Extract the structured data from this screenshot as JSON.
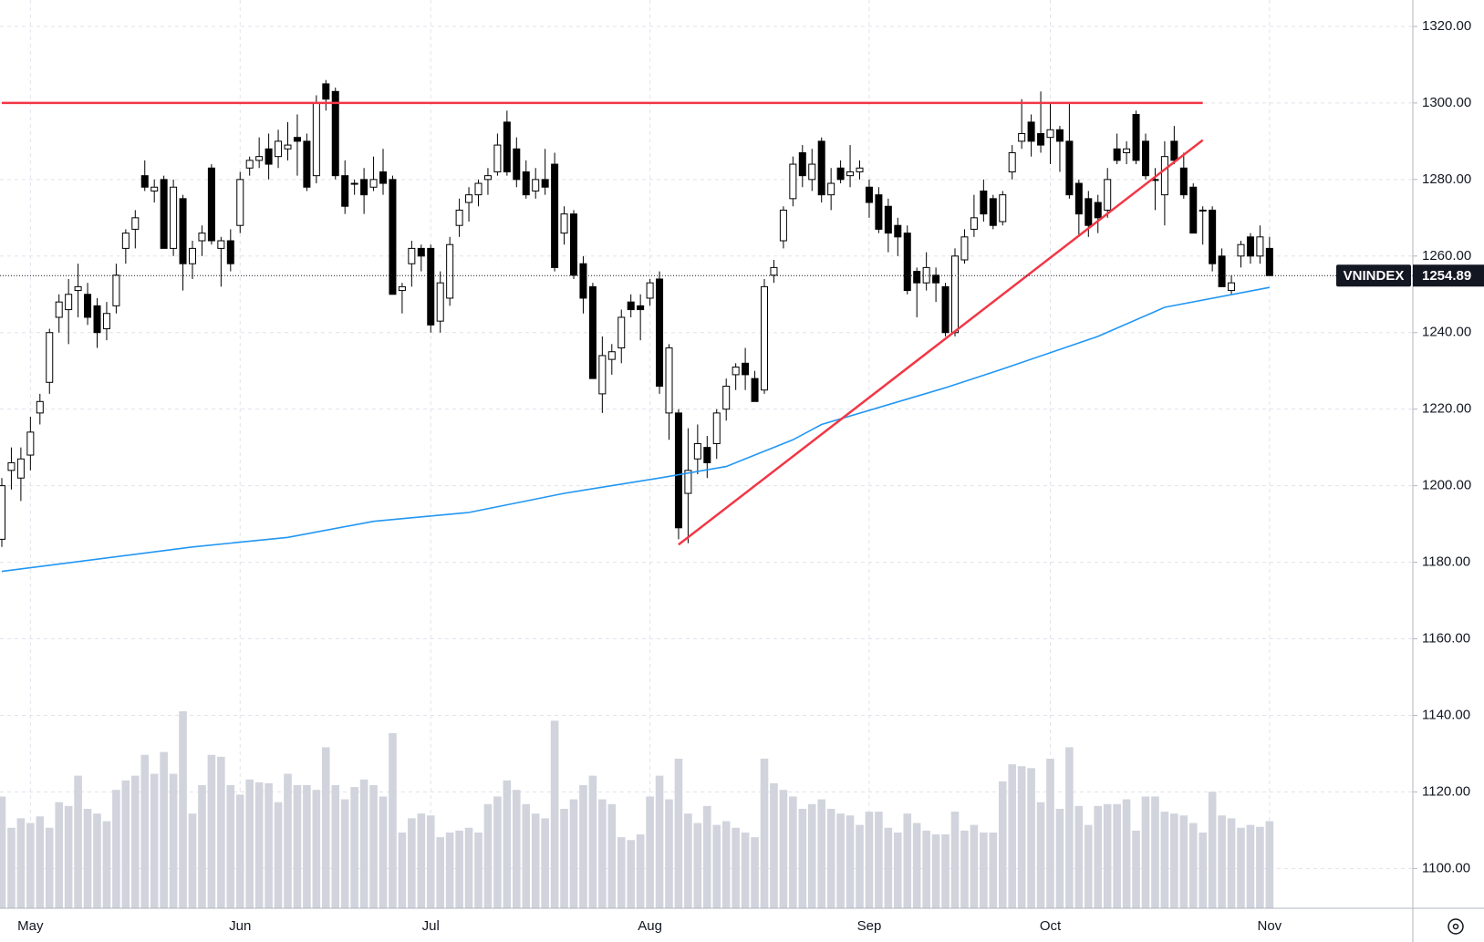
{
  "chart_data": {
    "type": "candlestick",
    "name": "VNINDEX",
    "categories": [
      null,
      null,
      null,
      "May",
      null,
      null,
      null,
      null,
      null,
      null,
      null,
      null,
      null,
      null,
      null,
      null,
      null,
      null,
      null,
      null,
      null,
      null,
      null,
      null,
      null,
      "Jun",
      null,
      null,
      null,
      null,
      null,
      null,
      null,
      null,
      null,
      null,
      null,
      null,
      null,
      null,
      null,
      null,
      null,
      null,
      null,
      "Jul",
      null,
      null,
      null,
      null,
      null,
      null,
      null,
      null,
      null,
      null,
      null,
      null,
      null,
      null,
      null,
      null,
      null,
      null,
      null,
      null,
      null,
      null,
      "Aug",
      null,
      null,
      null,
      null,
      null,
      null,
      null,
      null,
      null,
      null,
      null,
      null,
      null,
      null,
      null,
      null,
      null,
      null,
      null,
      null,
      null,
      null,
      "Sep",
      null,
      null,
      null,
      null,
      null,
      null,
      null,
      null,
      null,
      null,
      null,
      null,
      null,
      null,
      null,
      null,
      null,
      null,
      "Oct",
      null,
      null,
      null,
      null,
      null,
      null,
      null,
      null,
      null,
      null,
      null,
      null,
      null,
      null,
      null,
      null,
      null,
      null,
      null,
      null,
      null,
      null,
      "Nov"
    ],
    "open": [
      1186,
      1204,
      1202,
      1208,
      1219,
      1227,
      1244,
      1246,
      1251,
      1250,
      1247,
      1241,
      1247,
      1262,
      1267,
      1281,
      1277,
      1280,
      1262,
      1275,
      1258,
      1264,
      1283,
      1262,
      1264,
      1268,
      1283,
      1285,
      1288,
      1286,
      1288,
      1291,
      1290,
      1281,
      1305,
      1303,
      1281,
      1279,
      1280,
      1278,
      1282,
      1280,
      1251,
      1258,
      1262,
      1262,
      1243,
      1249,
      1268,
      1274,
      1276,
      1280,
      1282,
      1295,
      1288,
      1282,
      1277,
      1280,
      1284,
      1266,
      1271,
      1258,
      1252,
      1224,
      1233,
      1236,
      1248,
      1247,
      1249,
      1254,
      1219,
      1219,
      1198,
      1207,
      1210,
      1211,
      1220,
      1229,
      1232,
      1228,
      1225,
      1255,
      1264,
      1275,
      1287,
      1280,
      1290,
      1276,
      1283,
      1281,
      1282,
      1278,
      1276,
      1273,
      1268,
      1266,
      1256,
      1253,
      1255,
      1252,
      1240,
      1259,
      1267,
      1277,
      1275,
      1269,
      1282,
      1290,
      1295,
      1292,
      1291,
      1293,
      1290,
      1279,
      1275,
      1274,
      1272,
      1288,
      1287,
      1297,
      1290,
      1280,
      1276,
      1290,
      1283,
      1278,
      1272,
      1272,
      1260,
      1251,
      1260,
      1265,
      1260,
      1262
    ],
    "high": [
      1202,
      1210,
      1210,
      1218,
      1224,
      1241,
      1250,
      1254,
      1258,
      1253,
      1249,
      1248,
      1258,
      1267,
      1272,
      1285,
      1280,
      1281,
      1280,
      1276,
      1264,
      1268,
      1284,
      1265,
      1267,
      1282,
      1286,
      1291,
      1292,
      1293,
      1295,
      1297,
      1292,
      1302,
      1306,
      1304,
      1285,
      1280,
      1283,
      1286,
      1288,
      1281,
      1253,
      1264,
      1263,
      1263,
      1256,
      1265,
      1275,
      1278,
      1280,
      1283,
      1292,
      1298,
      1291,
      1285,
      1283,
      1288,
      1287,
      1273,
      1272,
      1260,
      1253,
      1239,
      1237,
      1246,
      1250,
      1250,
      1254,
      1256,
      1237,
      1220,
      1215,
      1216,
      1213,
      1220,
      1228,
      1232,
      1236,
      1230,
      1254,
      1259,
      1273,
      1286,
      1289,
      1288,
      1291,
      1283,
      1285,
      1289,
      1285,
      1280,
      1278,
      1275,
      1270,
      1268,
      1257,
      1261,
      1257,
      1253,
      1262,
      1267,
      1276,
      1280,
      1276,
      1277,
      1289,
      1301,
      1297,
      1303,
      1300,
      1294,
      1300,
      1280,
      1277,
      1276,
      1283,
      1292,
      1290,
      1298,
      1292,
      1283,
      1290,
      1294,
      1287,
      1279,
      1273,
      1273,
      1262,
      1255,
      1264,
      1266,
      1268,
      1265
    ],
    "low": [
      1184,
      1199,
      1196,
      1204,
      1216,
      1224,
      1240,
      1237,
      1244,
      1242,
      1236,
      1238,
      1245,
      1258,
      1262,
      1277,
      1274,
      1262,
      1260,
      1251,
      1254,
      1260,
      1263,
      1252,
      1256,
      1266,
      1281,
      1283,
      1280,
      1283,
      1285,
      1281,
      1277,
      1279,
      1298,
      1280,
      1271,
      1276,
      1271,
      1277,
      1276,
      1250,
      1245,
      1252,
      1256,
      1240,
      1240,
      1247,
      1265,
      1269,
      1273,
      1276,
      1281,
      1281,
      1278,
      1275,
      1275,
      1276,
      1256,
      1263,
      1254,
      1245,
      1228,
      1219,
      1229,
      1232,
      1244,
      1238,
      1247,
      1224,
      1212,
      1186,
      1185,
      1203,
      1202,
      1207,
      1217,
      1225,
      1225,
      1222,
      1224,
      1253,
      1262,
      1273,
      1278,
      1277,
      1274,
      1272,
      1279,
      1278,
      1280,
      1270,
      1266,
      1261,
      1260,
      1250,
      1244,
      1251,
      1248,
      1239,
      1239,
      1258,
      1265,
      1269,
      1267,
      1268,
      1280,
      1288,
      1286,
      1287,
      1284,
      1282,
      1275,
      1265,
      1265,
      1266,
      1270,
      1284,
      1284,
      1284,
      1280,
      1272,
      1268,
      1284,
      1275,
      1266,
      1263,
      1256,
      1252,
      1250,
      1257,
      1258,
      1258,
      1254.89
    ],
    "close": [
      1200,
      1206,
      1207,
      1214,
      1222,
      1240,
      1248,
      1250,
      1252,
      1244,
      1240,
      1245,
      1255,
      1266,
      1270,
      1278,
      1278,
      1262,
      1278,
      1258,
      1262,
      1266,
      1264,
      1264,
      1258,
      1280,
      1285,
      1286,
      1284,
      1290,
      1289,
      1290,
      1278,
      1300,
      1301,
      1281,
      1273,
      1279,
      1276,
      1280,
      1279,
      1250,
      1252,
      1262,
      1260,
      1242,
      1253,
      1263,
      1272,
      1276,
      1279,
      1281,
      1289,
      1282,
      1280,
      1276,
      1280,
      1278,
      1257,
      1271,
      1255,
      1249,
      1228,
      1234,
      1235,
      1244,
      1246,
      1246,
      1253,
      1226,
      1236,
      1189,
      1204,
      1211,
      1206,
      1219,
      1226,
      1231,
      1229,
      1222,
      1252,
      1257,
      1272,
      1284,
      1281,
      1284,
      1276,
      1279,
      1280,
      1282,
      1283,
      1274,
      1267,
      1266,
      1265,
      1251,
      1253,
      1257,
      1253,
      1240,
      1260,
      1265,
      1270,
      1271,
      1268,
      1276,
      1287,
      1292,
      1290,
      1289,
      1293,
      1290,
      1276,
      1271,
      1268,
      1270,
      1280,
      1285,
      1288,
      1285,
      1281,
      1280,
      1286,
      1285,
      1276,
      1266,
      1272,
      1258,
      1252,
      1253,
      1263,
      1260,
      1265,
      1254.89
    ],
    "volume": [
      118,
      85,
      95,
      90,
      97,
      85,
      112,
      108,
      140,
      105,
      100,
      92,
      125,
      135,
      140,
      162,
      142,
      165,
      142,
      208,
      100,
      130,
      162,
      160,
      130,
      120,
      136,
      133,
      132,
      112,
      142,
      130,
      130,
      125,
      170,
      130,
      115,
      128,
      136,
      130,
      118,
      185,
      80,
      95,
      100,
      98,
      75,
      80,
      82,
      85,
      80,
      110,
      118,
      135,
      125,
      110,
      100,
      95,
      198,
      105,
      115,
      130,
      140,
      115,
      110,
      75,
      72,
      78,
      118,
      140,
      115,
      158,
      100,
      90,
      108,
      88,
      92,
      85,
      80,
      75,
      158,
      132,
      125,
      118,
      105,
      110,
      115,
      105,
      100,
      98,
      88,
      102,
      102,
      85,
      80,
      100,
      90,
      82,
      78,
      78,
      102,
      82,
      88,
      80,
      80,
      134,
      152,
      150,
      148,
      112,
      158,
      105,
      170,
      108,
      88,
      108,
      110,
      110,
      115,
      82,
      118,
      118,
      102,
      100,
      98,
      90,
      80,
      123,
      98,
      95,
      85,
      88,
      86,
      92
    ],
    "volume_color": "#d1d4dc",
    "up_color": "#ffffff",
    "down_color": "#000000",
    "ylim": [
      1089.6,
      1326.9
    ],
    "yticks": [
      {
        "value": 1100,
        "label": "1100.00"
      },
      {
        "value": 1120,
        "label": "1120.00"
      },
      {
        "value": 1140,
        "label": "1140.00"
      },
      {
        "value": 1160,
        "label": "1160.00"
      },
      {
        "value": 1180,
        "label": "1180.00"
      },
      {
        "value": 1200,
        "label": "1200.00"
      },
      {
        "value": 1220,
        "label": "1220.00"
      },
      {
        "value": 1240,
        "label": "1240.00"
      },
      {
        "value": 1260,
        "label": "1260.00"
      },
      {
        "value": 1280,
        "label": "1280.00"
      },
      {
        "value": 1300,
        "label": "1300.00"
      },
      {
        "value": 1320,
        "label": "1320.00"
      }
    ],
    "grid": true,
    "ma": {
      "color": "#2196f3",
      "x": [
        0,
        20,
        30,
        39,
        49,
        59,
        69,
        76,
        79,
        83,
        86,
        99,
        105,
        115,
        122,
        133
      ],
      "values": [
        1177.6,
        1184,
        1186.5,
        1190.7,
        1193,
        1198,
        1202,
        1205,
        1208,
        1212,
        1216,
        1225.6,
        1230.5,
        1239,
        1246.6,
        1251.8
      ]
    },
    "lines": [
      {
        "color": "#f23645",
        "x": [
          0,
          126
        ],
        "values": [
          1300,
          1300
        ]
      },
      {
        "color": "#f23645",
        "x": [
          71,
          126
        ],
        "values": [
          1184.6,
          1290.3
        ]
      }
    ]
  }
}
